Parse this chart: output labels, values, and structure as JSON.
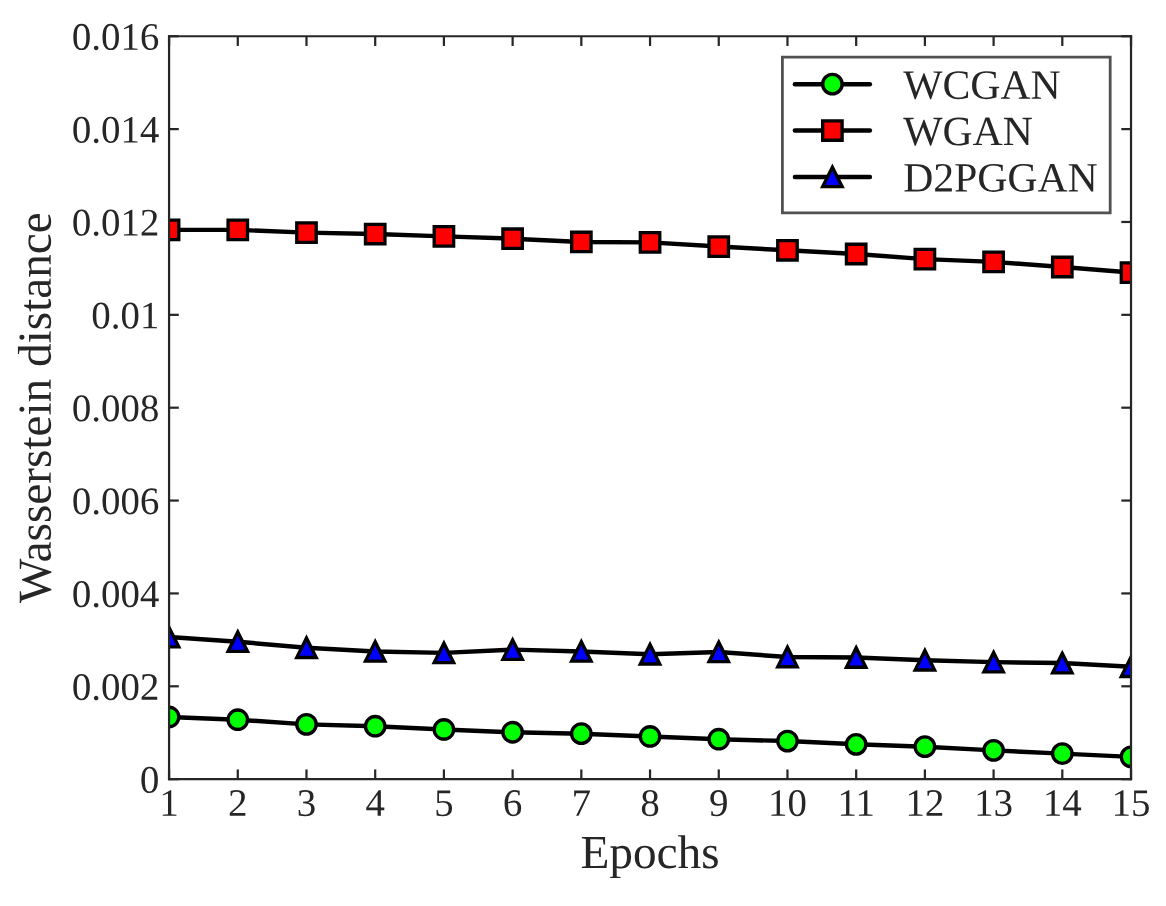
{
  "chart_data": {
    "type": "line",
    "xlabel": "Epochs",
    "ylabel": "Wasserstein distance",
    "x": [
      1,
      2,
      3,
      4,
      5,
      6,
      7,
      8,
      9,
      10,
      11,
      12,
      13,
      14,
      15
    ],
    "series": [
      {
        "name": "WCGAN",
        "color": "#00ff00",
        "marker": "circle",
        "values": [
          0.00134,
          0.00128,
          0.00118,
          0.00114,
          0.00107,
          0.00101,
          0.00098,
          0.00092,
          0.00086,
          0.00082,
          0.00075,
          0.0007,
          0.00062,
          0.00055,
          0.00048
        ]
      },
      {
        "name": "WGAN",
        "color": "#ff0000",
        "marker": "square",
        "values": [
          0.01183,
          0.01183,
          0.01177,
          0.01174,
          0.01169,
          0.01164,
          0.01157,
          0.01156,
          0.01147,
          0.01139,
          0.01131,
          0.0112,
          0.01114,
          0.01103,
          0.01091
        ]
      },
      {
        "name": "D2PGGAN",
        "color": "#0000ff",
        "marker": "triangle",
        "values": [
          0.00306,
          0.00296,
          0.00283,
          0.00275,
          0.00272,
          0.00279,
          0.00275,
          0.00269,
          0.00274,
          0.00263,
          0.00262,
          0.00256,
          0.00252,
          0.0025,
          0.00242
        ]
      }
    ],
    "xlim": [
      1,
      15
    ],
    "xticks": [
      1,
      2,
      3,
      4,
      5,
      6,
      7,
      8,
      9,
      10,
      11,
      12,
      13,
      14,
      15
    ],
    "ylim": [
      0,
      0.016
    ],
    "yticks": [
      0,
      0.002,
      0.004,
      0.006,
      0.008,
      0.01,
      0.012,
      0.014,
      0.016
    ],
    "legend": "top right",
    "grid": false,
    "line_style": "solid"
  }
}
